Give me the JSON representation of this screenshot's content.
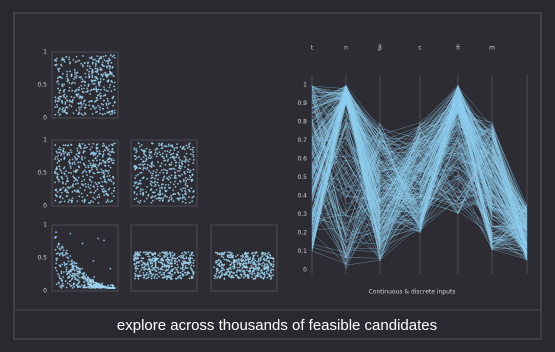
{
  "scatter": {
    "tick_labels": [
      [
        "1",
        "0.5",
        "0"
      ],
      [
        "1",
        "0.5",
        "0"
      ],
      [
        "1",
        "0.5",
        "0"
      ]
    ]
  },
  "parallel": {
    "axes": [
      "t",
      "n",
      "β",
      "c",
      "fi",
      "m"
    ],
    "ticks": [
      "1",
      "0.9",
      "0.8",
      "0.7",
      "0.6",
      "0.5",
      "0.4",
      "0.3",
      "0.2",
      "0.1",
      "0"
    ],
    "x_label": "Continuous & discrete inputs"
  },
  "caption": "explore across thousands of feasible candidates"
}
